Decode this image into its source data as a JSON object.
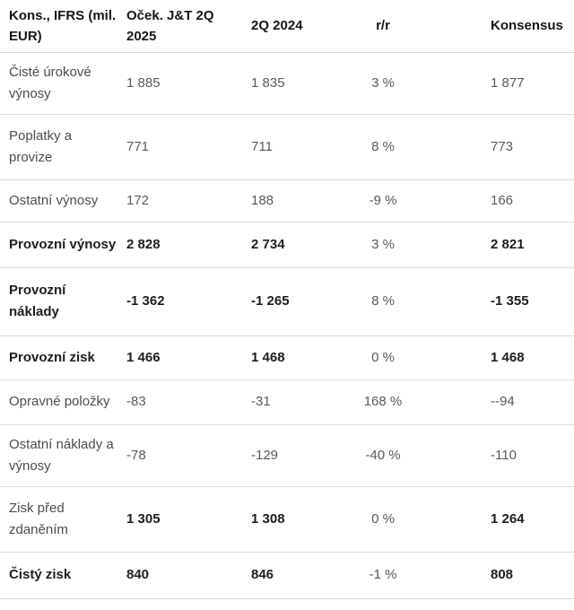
{
  "colors": {
    "background": "#ffffff",
    "separator": "#d9d9d9",
    "header_text": "#171717",
    "regular_text": "#595959",
    "label_text": "#4c4c4c",
    "bold_text": "#1e1e1e"
  },
  "table": {
    "columns": [
      "Kons., IFRS (mil. EUR)",
      "Oček. J&T 2Q 2025",
      "2Q 2024",
      "r/r",
      "Konsensus"
    ],
    "rows": [
      {
        "label": "Čisté úrokové výnosy",
        "values": [
          "1 885",
          "1 835",
          "3 %",
          "1 877"
        ]
      },
      {
        "label": "Poplatky a provize",
        "values": [
          "771",
          "711",
          "8 %",
          "773"
        ]
      },
      {
        "label": "Ostatní výnosy",
        "values": [
          "172",
          "188",
          "-9 %",
          "166"
        ]
      },
      {
        "label": "Provozní výnosy",
        "values": [
          "2 828",
          "2 734",
          "3 %",
          "2 821"
        ]
      },
      {
        "label": "Provozní náklady",
        "values": [
          "-1 362",
          "-1 265",
          "8 %",
          "-1 355"
        ]
      },
      {
        "label": "Provozní zisk",
        "values": [
          "1 466",
          "1 468",
          "0 %",
          "1 468"
        ]
      },
      {
        "label": "Opravné položky",
        "values": [
          "-83",
          "-31",
          "168 %",
          "--94"
        ]
      },
      {
        "label": "Ostatní náklady a výnosy",
        "values": [
          "-78",
          "-129",
          "-40 %",
          "-110"
        ]
      },
      {
        "label": "Zisk před zdaněním",
        "values": [
          "1 305",
          "1 308",
          "0 %",
          "1 264"
        ]
      },
      {
        "label": "Čistý zisk",
        "values": [
          "840",
          "846",
          "-1 %",
          "808"
        ]
      }
    ]
  },
  "chart_data": {
    "type": "table",
    "title": "Kons., IFRS (mil. EUR) — Oček. J&T 2Q 2025 vs 2Q 2024 vs Konsensus",
    "columns": [
      "Kons., IFRS (mil. EUR)",
      "Oček. J&T 2Q 2025",
      "2Q 2024",
      "r/r",
      "Konsensus"
    ],
    "rows": [
      [
        "Čisté úrokové výnosy",
        "1 885",
        "1 835",
        "3 %",
        "1 877"
      ],
      [
        "Poplatky a provize",
        "771",
        "711",
        "8 %",
        "773"
      ],
      [
        "Ostatní výnosy",
        "172",
        "188",
        "-9 %",
        "166"
      ],
      [
        "Provozní výnosy",
        "2 828",
        "2 734",
        "3 %",
        "2 821"
      ],
      [
        "Provozní náklady",
        "-1 362",
        "-1 265",
        "8 %",
        "-1 355"
      ],
      [
        "Provozní zisk",
        "1 466",
        "1 468",
        "0 %",
        "1 468"
      ],
      [
        "Opravné položky",
        "-83",
        "-31",
        "168 %",
        "--94"
      ],
      [
        "Ostatní náklady a výnosy",
        "-78",
        "-129",
        "-40 %",
        "-110"
      ],
      [
        "Zisk před zdaněním",
        "1 305",
        "1 308",
        "0 %",
        "1 264"
      ],
      [
        "Čistý zisk",
        "840",
        "846",
        "-1 %",
        "808"
      ]
    ],
    "emphasized_rows": [
      "Provozní výnosy",
      "Provozní náklady",
      "Provozní zisk",
      "Zisk před zdaněním",
      "Čistý zisk"
    ]
  }
}
